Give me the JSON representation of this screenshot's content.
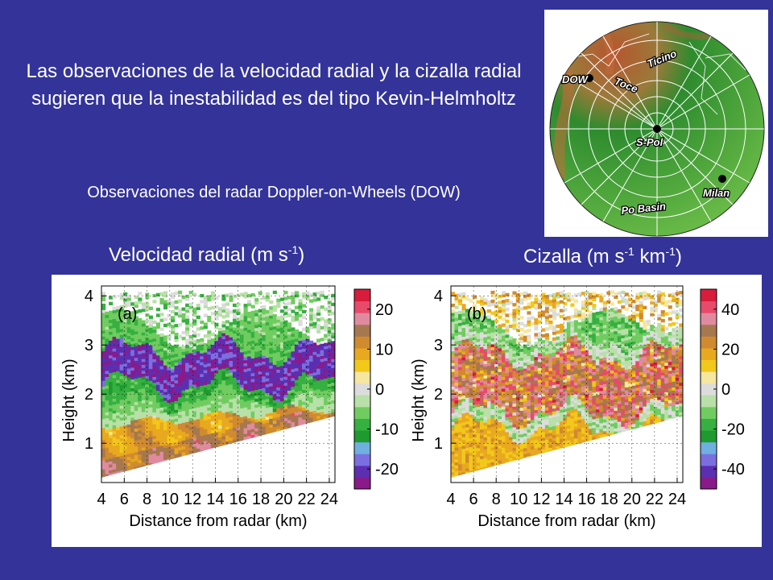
{
  "headline": "Las observaciones de la velocidad radial y la cizalla radial sugieren que la inestabilidad es del tipo Kevin-Helmholtz",
  "subline": "Observaciones del radar Doppler-on-Wheels (DOW)",
  "titles": {
    "velocity_main": "Velocidad radial (m s",
    "velocity_sup": "-1",
    "velocity_end": ")",
    "shear_main": "Cizalla (m s",
    "shear_sup1": "-1",
    "shear_mid": " km",
    "shear_sup2": "-1",
    "shear_end": ")"
  },
  "map": {
    "labels": {
      "dow": "DOW",
      "toce": "Toce",
      "ticino": "Ticino",
      "spol": "S-Pol",
      "milan": "Milan",
      "po": "Po Basin"
    },
    "colors": {
      "terrain_low": "#2e8b2e",
      "terrain_mid": "#6fbf4a",
      "terrain_high": "#b8552f",
      "rings": "#ffffff"
    }
  },
  "chart_data": [
    {
      "type": "heatmap",
      "panel_label": "(a)",
      "xlabel": "Distance from radar (km)",
      "ylabel": "Height (km)",
      "xlim": [
        4,
        24.5
      ],
      "ylim": [
        0.2,
        4.2
      ],
      "x_ticks": [
        "4",
        "6",
        "8",
        "10",
        "12",
        "14",
        "16",
        "18",
        "20",
        "22",
        "24"
      ],
      "y_ticks": [
        "1",
        "2",
        "3",
        "4"
      ],
      "colorbar": {
        "ticks": [
          "20",
          "10",
          "0",
          "-10",
          "-20"
        ],
        "tick_values": [
          20,
          10,
          0,
          -10,
          -20
        ],
        "range": [
          -25,
          25
        ],
        "colors": [
          "#8a1a8a",
          "#5c2fb0",
          "#7b6fe0",
          "#6fb0e0",
          "#1e9a2e",
          "#36b040",
          "#70cc60",
          "#b8e0a8",
          "#dcdcdc",
          "#f5e6a0",
          "#f2c81a",
          "#e8a820",
          "#d08a30",
          "#a67850",
          "#e08aa0",
          "#e84a6a",
          "#d81c3c"
        ]
      },
      "features": {
        "ground_start_km": 0.3,
        "ground_end_km": 1.45,
        "layer_heights_km": {
          "yellow_top_x": [
            4,
            24
          ],
          "yellow_top": [
            1.35,
            1.7
          ],
          "purple_center": 2.5
        },
        "noise_top_km": 4.0
      }
    },
    {
      "type": "heatmap",
      "panel_label": "(b)",
      "xlabel": "Distance from radar (km)",
      "ylabel": "Height (km)",
      "xlim": [
        4,
        24.5
      ],
      "ylim": [
        0.2,
        4.2
      ],
      "x_ticks": [
        "4",
        "6",
        "8",
        "10",
        "12",
        "14",
        "16",
        "18",
        "20",
        "22",
        "24"
      ],
      "y_ticks": [
        "1",
        "2",
        "3",
        "4"
      ],
      "colorbar": {
        "ticks": [
          "40",
          "20",
          "0",
          "-20",
          "-40"
        ],
        "tick_values": [
          40,
          20,
          0,
          -20,
          -40
        ],
        "range": [
          -50,
          50
        ],
        "colors": [
          "#8a1a8a",
          "#5c2fb0",
          "#7b6fe0",
          "#6fb0e0",
          "#1e9a2e",
          "#36b040",
          "#70cc60",
          "#b8e0a8",
          "#dcdcdc",
          "#f5e6a0",
          "#f2c81a",
          "#e8a820",
          "#d08a30",
          "#a67850",
          "#e08aa0",
          "#e84a6a",
          "#d81c3c"
        ]
      }
    }
  ]
}
